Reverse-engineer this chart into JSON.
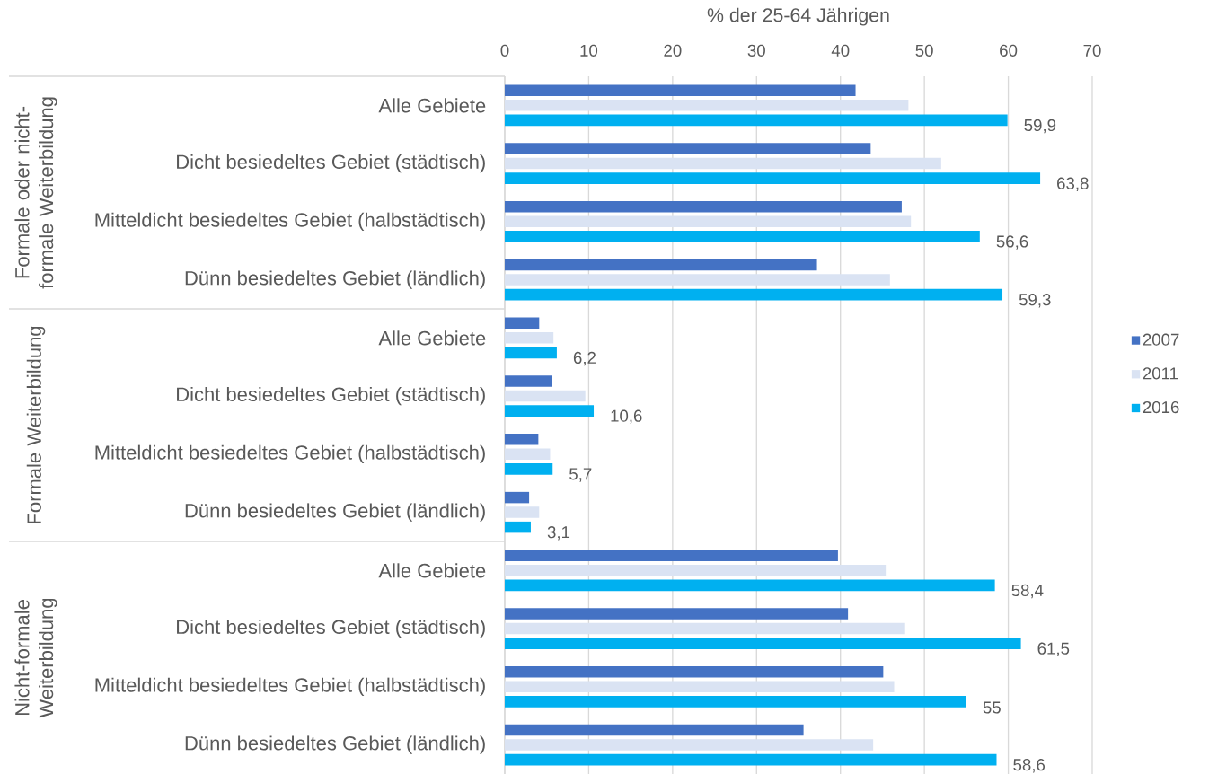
{
  "chart_data": {
    "type": "bar",
    "orientation": "horizontal",
    "xlabel": "% der 25-64 Jährigen",
    "categories": [
      "Alle Gebiete",
      "Dicht besiedeltes Gebiet (städtisch)",
      "Mitteldicht besiedeltes Gebiet (halbstädtisch)",
      "Dünn besiedeltes Gebiet (ländlich)",
      "Alle Gebiete",
      "Dicht besiedeltes Gebiet (städtisch)",
      "Mitteldicht besiedeltes Gebiet (halbstädtisch)",
      "Dünn besiedeltes Gebiet (ländlich)",
      "Alle Gebiete",
      "Dicht besiedeltes Gebiet (städtisch)",
      "Mitteldicht besiedeltes Gebiet (halbstädtisch)",
      "Dünn besiedeltes Gebiet (ländlich)"
    ],
    "annotations": [
      "Formale oder nicht-formale Weiterbildung",
      "Formale Weiterbildung",
      "Nicht-formale Weiterbildung"
    ],
    "series": [
      {
        "name": "2007",
        "color": "#4472c4",
        "values": [
          41.8,
          43.6,
          47.3,
          37.2,
          4.1,
          5.6,
          4.0,
          2.9,
          39.7,
          40.9,
          45.1,
          35.6
        ]
      },
      {
        "name": "2011",
        "color": "#dae3f3",
        "values": [
          48.1,
          52.0,
          48.4,
          45.9,
          5.8,
          9.6,
          5.4,
          4.1,
          45.4,
          47.6,
          46.4,
          43.9
        ]
      },
      {
        "name": "2016",
        "color": "#00b0f0",
        "values": [
          59.9,
          63.8,
          56.6,
          59.3,
          6.2,
          10.6,
          5.7,
          3.1,
          58.4,
          61.5,
          55,
          58.6
        ],
        "value_labels": [
          "59,9",
          "63,8",
          "56,6",
          "59,3",
          "6,2",
          "10,6",
          "5,7",
          "3,1",
          "58,4",
          "61,5",
          "55",
          "58,6"
        ]
      }
    ],
    "xlim": [
      0,
      70
    ],
    "xticks": [
      0,
      10,
      20,
      30,
      40,
      50,
      60,
      70
    ],
    "grid": "x",
    "legend": "right"
  }
}
